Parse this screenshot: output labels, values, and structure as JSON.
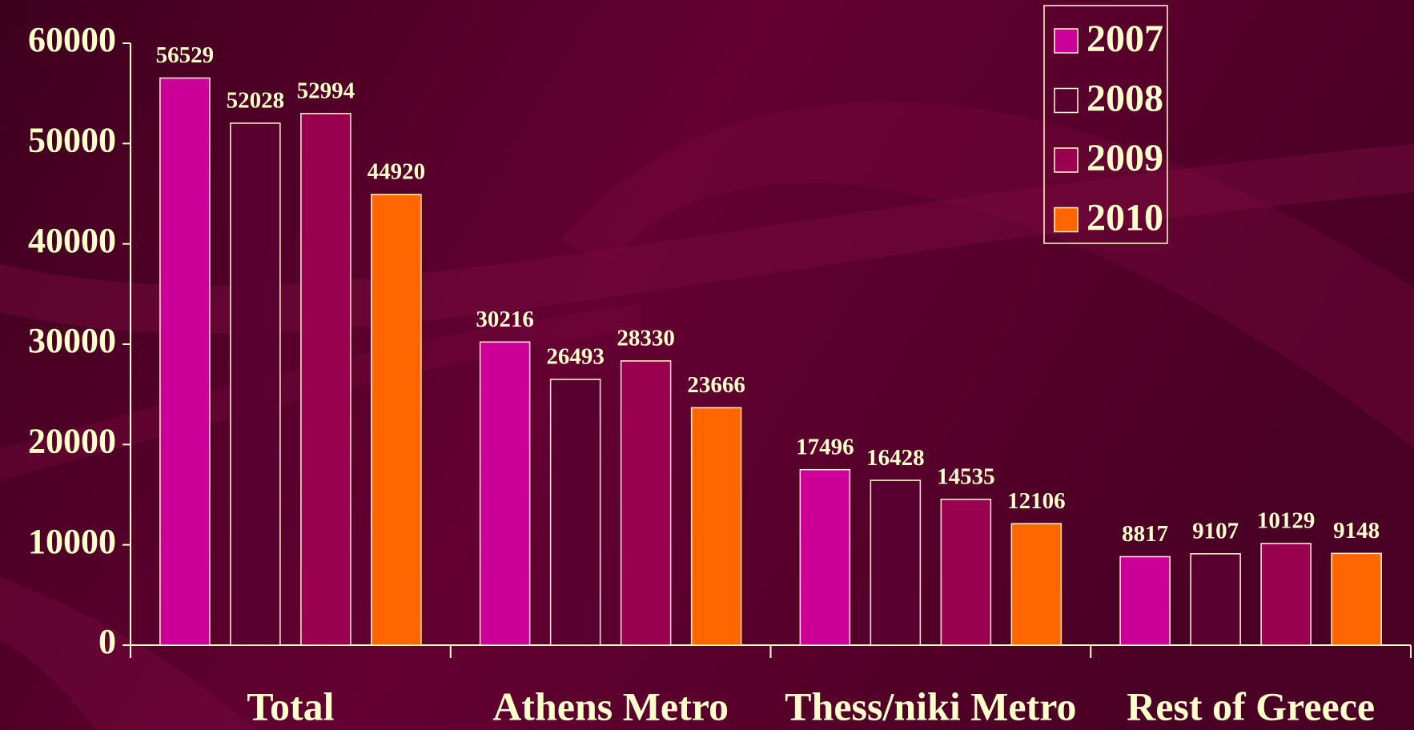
{
  "chart_data": {
    "type": "bar",
    "categories": [
      "Total",
      "Athens Metro",
      "Thess/niki Metro",
      "Rest of Greece"
    ],
    "series": [
      {
        "name": "2007",
        "color": "#cc0099",
        "values": [
          56529,
          30216,
          17496,
          8817
        ]
      },
      {
        "name": "2008",
        "color": "#5a0030",
        "values": [
          52028,
          26493,
          16428,
          9107
        ]
      },
      {
        "name": "2009",
        "color": "#990050",
        "values": [
          52994,
          28330,
          14535,
          10129
        ]
      },
      {
        "name": "2010",
        "color": "#ff6600",
        "values": [
          44920,
          23666,
          12106,
          9148
        ]
      }
    ],
    "ylim": [
      0,
      60000
    ],
    "yticks": [
      0,
      10000,
      20000,
      30000,
      40000,
      50000,
      60000
    ],
    "legend": "upper right"
  }
}
